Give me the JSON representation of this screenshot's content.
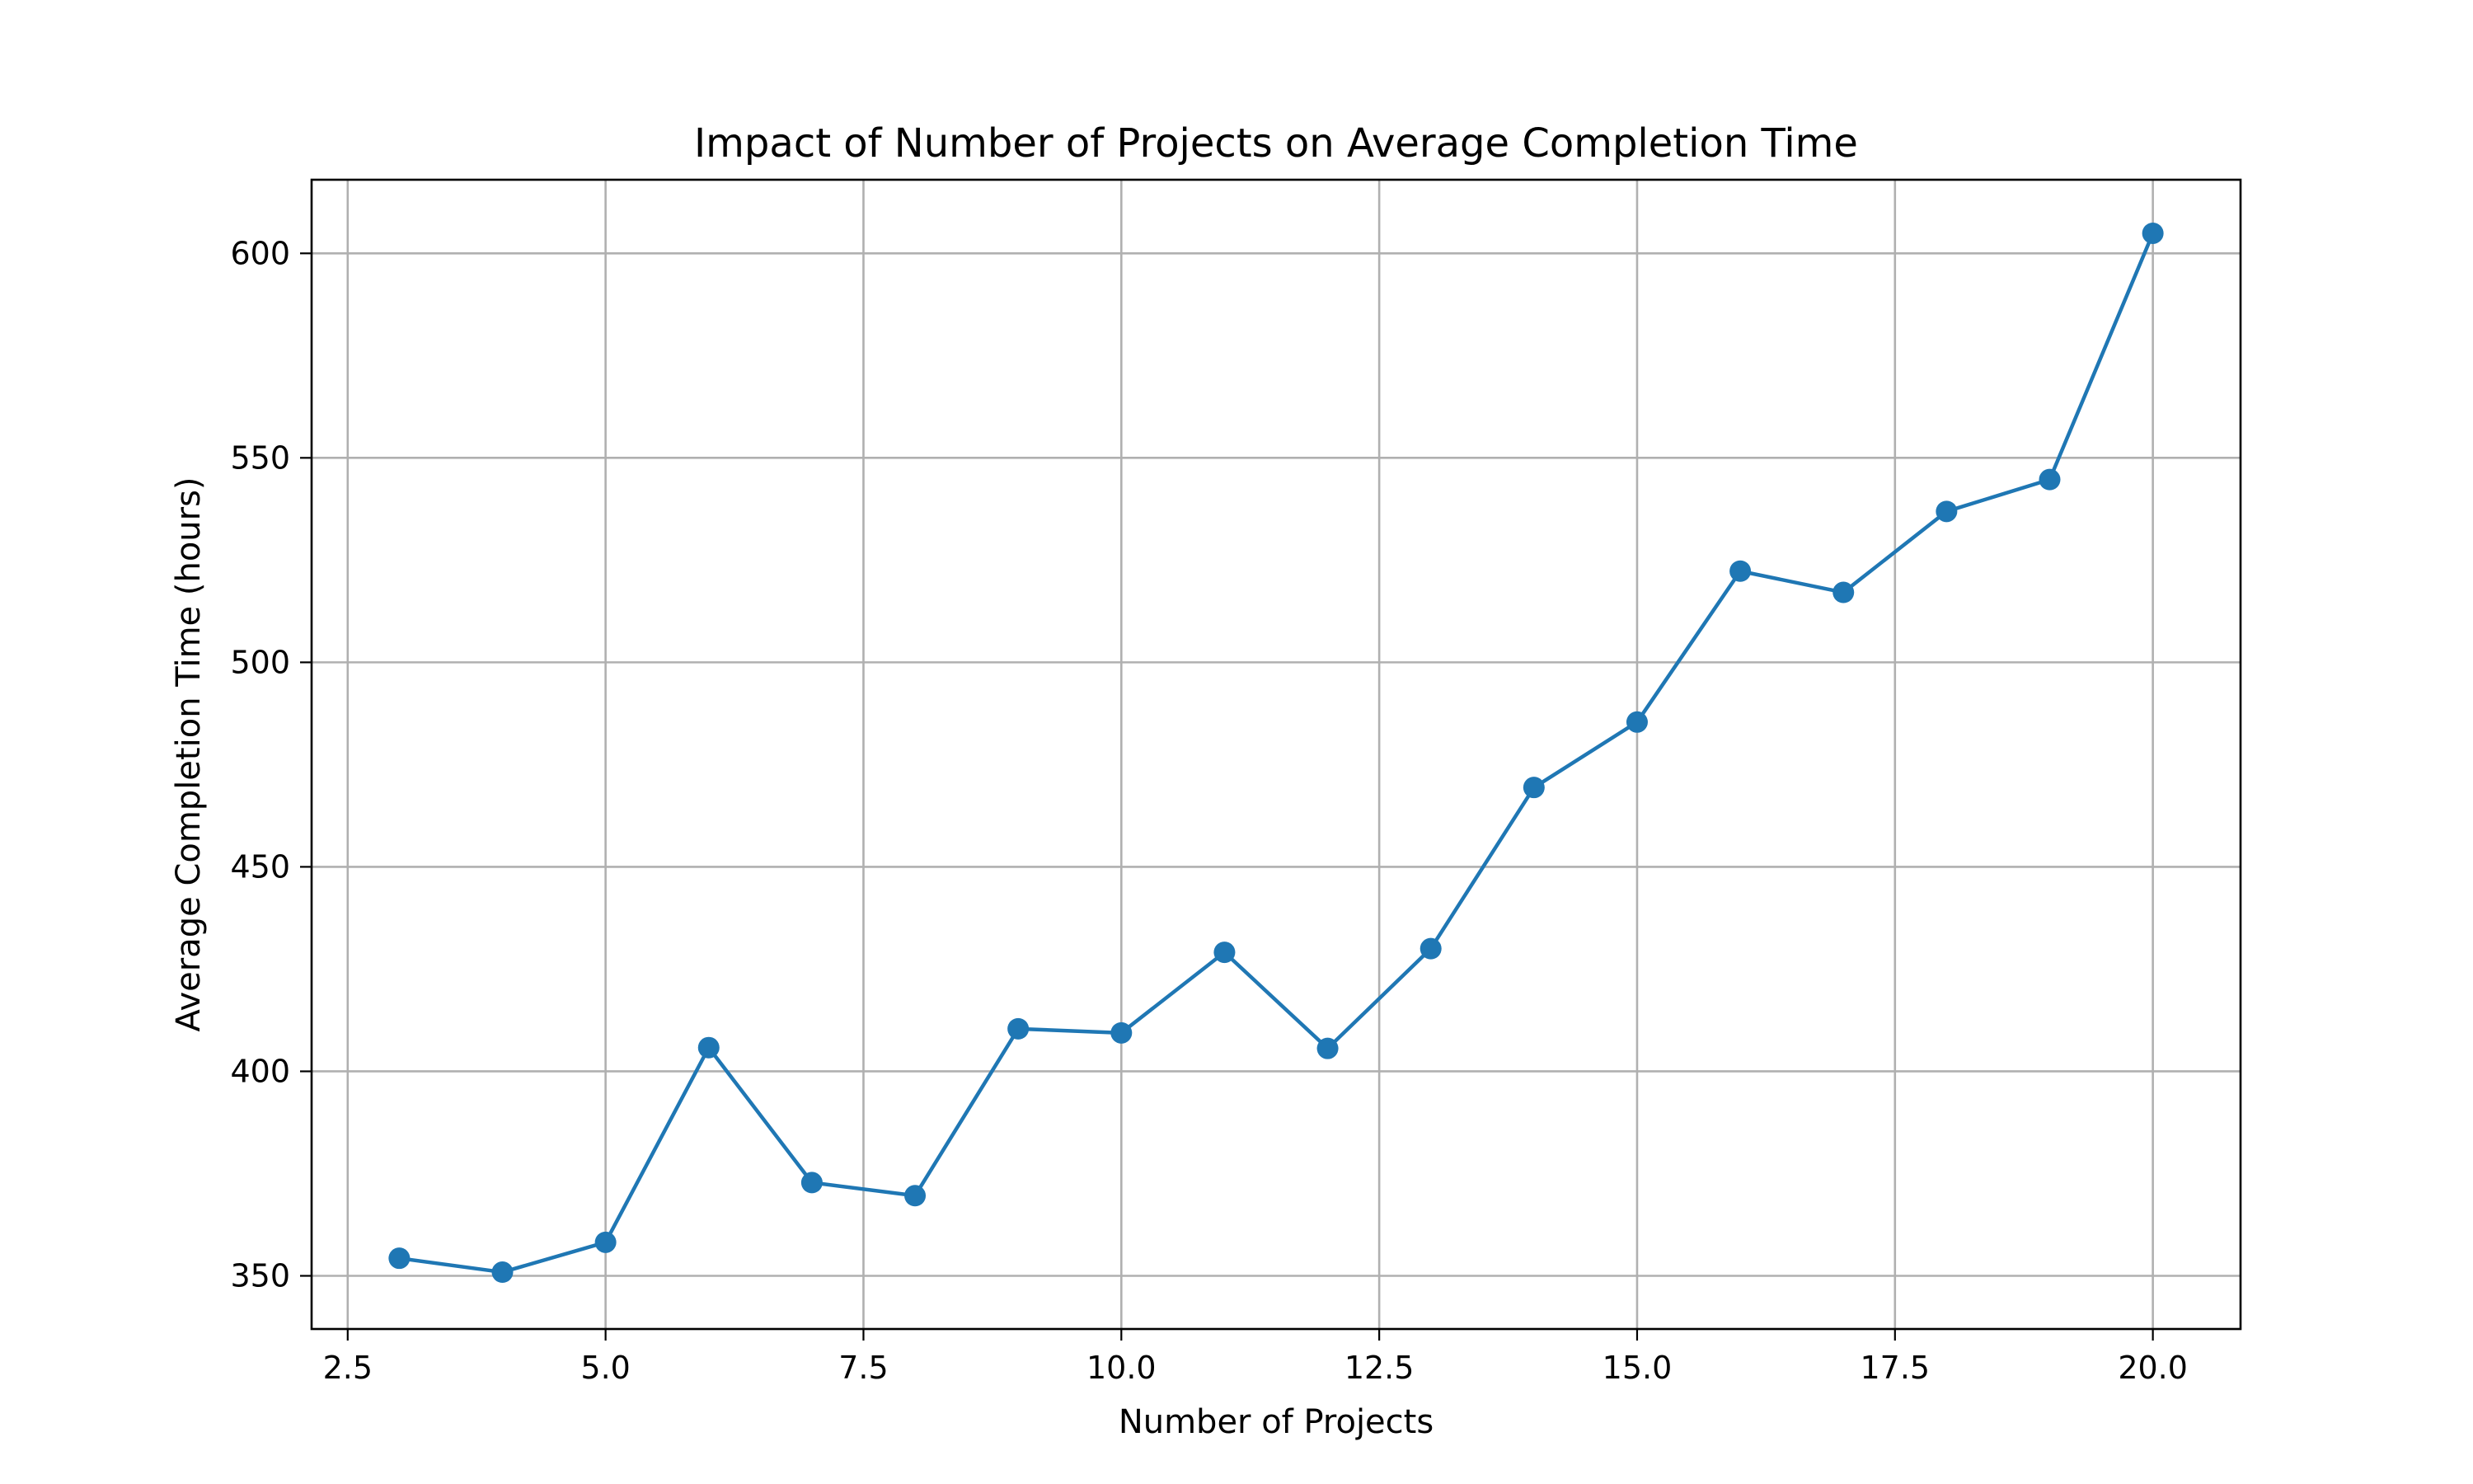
{
  "chart_data": {
    "type": "line",
    "title": "Impact of Number of Projects on Average Completion Time",
    "xlabel": "Number of Projects",
    "ylabel": "Average Completion Time (hours)",
    "xlim": [
      2.15,
      20.85
    ],
    "ylim": [
      337,
      618
    ],
    "xticks": [
      2.5,
      5.0,
      7.5,
      10.0,
      12.5,
      15.0,
      17.5,
      20.0
    ],
    "xtick_labels": [
      "2.5",
      "5.0",
      "7.5",
      "10.0",
      "12.5",
      "15.0",
      "17.5",
      "20.0"
    ],
    "yticks": [
      350,
      400,
      450,
      500,
      550,
      600
    ],
    "ytick_labels": [
      "350",
      "400",
      "450",
      "500",
      "550",
      "600"
    ],
    "grid": true,
    "marker": "circle",
    "line_color": "#1f77b4",
    "series": [
      {
        "x": [
          3,
          4,
          5,
          6,
          7,
          8,
          9,
          10,
          11,
          12,
          13,
          14,
          15,
          16,
          17,
          18,
          19,
          20
        ],
        "y": [
          354.3,
          350.9,
          358.2,
          405.8,
          372.8,
          369.6,
          410.4,
          409.4,
          429.1,
          405.6,
          430.0,
          469.4,
          485.4,
          522.3,
          517.1,
          536.9,
          544.7,
          604.9
        ]
      }
    ]
  }
}
